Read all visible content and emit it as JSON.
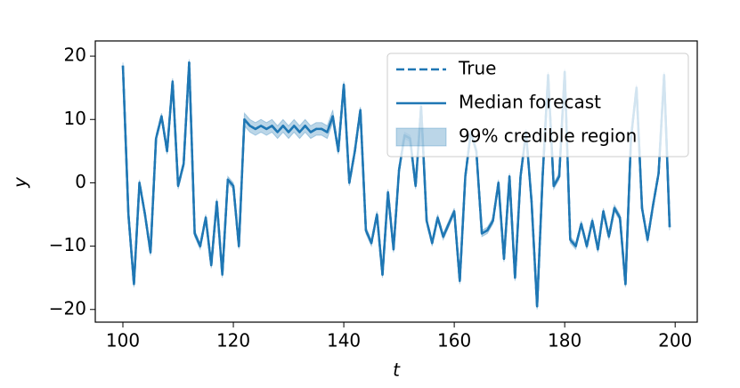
{
  "chart_data": {
    "type": "line",
    "xlabel": "t",
    "ylabel": "y",
    "x": [
      100,
      101,
      102,
      103,
      104,
      105,
      106,
      107,
      108,
      109,
      110,
      111,
      112,
      113,
      114,
      115,
      116,
      117,
      118,
      119,
      120,
      121,
      122,
      123,
      124,
      125,
      126,
      127,
      128,
      129,
      130,
      131,
      132,
      133,
      134,
      135,
      136,
      137,
      138,
      139,
      140,
      141,
      142,
      143,
      144,
      145,
      146,
      147,
      148,
      149,
      150,
      151,
      152,
      153,
      154,
      155,
      156,
      157,
      158,
      159,
      160,
      161,
      162,
      163,
      164,
      165,
      166,
      167,
      168,
      169,
      170,
      171,
      172,
      173,
      174,
      175,
      176,
      177,
      178,
      179,
      180,
      181,
      182,
      183,
      184,
      185,
      186,
      187,
      188,
      189,
      190,
      191,
      192,
      193,
      194,
      195,
      196,
      197,
      198,
      199
    ],
    "series": [
      {
        "name": "True",
        "color": "#1f77b4",
        "style": "dashed",
        "values": [
          18.5,
          -5,
          -16,
          0,
          -5,
          -11,
          7,
          10.5,
          5,
          16,
          -0.5,
          3,
          19,
          -8,
          -10,
          -5.5,
          -13,
          -3,
          -14.5,
          0.5,
          -0.5,
          -10,
          10,
          9,
          8.5,
          9,
          8.5,
          9,
          8,
          9,
          8,
          9,
          8,
          9,
          8,
          8.5,
          8.5,
          8,
          10.5,
          5,
          15.5,
          0,
          5,
          11.5,
          -7.5,
          -9.5,
          -5,
          -14.5,
          -1.5,
          -10.5,
          2,
          7.5,
          7,
          -0.5,
          12,
          -6,
          -9.5,
          -5.5,
          -8.5,
          -6.5,
          -4.5,
          -15.5,
          1,
          8,
          5,
          -8,
          -7.5,
          -6,
          0,
          -12,
          1,
          -15,
          1,
          8,
          -3,
          -19.5,
          1,
          17,
          -0.5,
          1,
          17.5,
          -9,
          -10,
          -6.5,
          -10,
          -6,
          -10.5,
          -4.5,
          -8.5,
          -4,
          -5.5,
          -16,
          7,
          15,
          -4,
          -9,
          -3.5,
          1.5,
          17,
          -7
        ]
      },
      {
        "name": "Median forecast",
        "color": "#1f77b4",
        "style": "solid",
        "values": [
          18.5,
          -5,
          -16,
          0,
          -5,
          -11,
          7,
          10.5,
          5,
          16,
          -0.5,
          3,
          19,
          -8,
          -10,
          -5.5,
          -13,
          -3,
          -14.5,
          0.5,
          -0.5,
          -10,
          10,
          9,
          8.5,
          9,
          8.5,
          9,
          8,
          9,
          8,
          9,
          8,
          9,
          8,
          8.5,
          8.5,
          8,
          10.5,
          5,
          15.5,
          0,
          5,
          11.5,
          -7.5,
          -9.5,
          -5,
          -14.5,
          -1.5,
          -10.5,
          2,
          7.5,
          7,
          -0.5,
          12,
          -6,
          -9.5,
          -5.5,
          -8.5,
          -6.5,
          -4.5,
          -15.5,
          1,
          8,
          5,
          -8,
          -7.5,
          -6,
          0,
          -12,
          1,
          -15,
          1,
          8,
          -3,
          -19.5,
          1,
          17,
          -0.5,
          1,
          17.5,
          -9,
          -10,
          -6.5,
          -10,
          -6,
          -10.5,
          -4.5,
          -8.5,
          -4,
          -5.5,
          -16,
          7,
          15,
          -4,
          -9,
          -3.5,
          1.5,
          17,
          -7
        ]
      }
    ],
    "band": {
      "name": "99% credible region",
      "color": "#1f77b4",
      "opacity": 0.3,
      "lower": [
        18,
        -5.5,
        -16.5,
        -0.5,
        -5.5,
        -11.5,
        6.5,
        10,
        4.5,
        15.5,
        -1,
        2.5,
        18.5,
        -8.5,
        -10.5,
        -6,
        -13.5,
        -3.5,
        -15,
        0,
        -1,
        -10.5,
        9,
        8,
        7.5,
        8,
        7.5,
        8,
        7,
        8,
        7,
        8,
        7,
        8,
        7,
        7.5,
        7.5,
        7,
        9.5,
        4.5,
        15,
        -0.5,
        4.5,
        11,
        -8,
        -10,
        -5.5,
        -15,
        -2,
        -11,
        1.5,
        7,
        6.5,
        -1,
        11.5,
        -6.5,
        -10,
        -6,
        -9,
        -7,
        -5,
        -16,
        0.5,
        7.5,
        4.5,
        -8.5,
        -8,
        -6.5,
        -0.5,
        -12.5,
        0.5,
        -15.5,
        0.5,
        7.5,
        -3.5,
        -20,
        0.5,
        16.5,
        -1,
        0.5,
        17,
        -9.5,
        -10.5,
        -7,
        -10.5,
        -6.5,
        -11,
        -5,
        -9,
        -4.5,
        -6,
        -16.5,
        6.5,
        14.5,
        -4.5,
        -9.5,
        -4,
        1,
        16.5,
        -7.5
      ],
      "upper": [
        19,
        -4.5,
        -15.5,
        0.5,
        -4.5,
        -10.5,
        7.5,
        11,
        5.5,
        16.5,
        0,
        3.5,
        19.5,
        -7.5,
        -9.5,
        -5,
        -12.5,
        -2.5,
        -14,
        1,
        0,
        -9.5,
        11,
        10,
        9.5,
        10,
        9.5,
        10,
        9,
        10,
        9,
        10,
        9,
        10,
        9,
        9.5,
        9.5,
        9,
        11.5,
        5.5,
        16,
        0.5,
        5.5,
        12,
        -7,
        -9,
        -4.5,
        -14,
        -1,
        -10,
        2.5,
        8,
        7.5,
        0,
        12.5,
        -5.5,
        -9,
        -5,
        -8,
        -6,
        -4,
        -15,
        1.5,
        8.5,
        5.5,
        -7.5,
        -7,
        -5.5,
        0.5,
        -11.5,
        1.5,
        -14.5,
        1.5,
        8.5,
        -2.5,
        -19,
        1.5,
        17.5,
        0,
        1.5,
        18,
        -8.5,
        -9.5,
        -6,
        -9.5,
        -5.5,
        -10,
        -4,
        -8,
        -3.5,
        -5,
        -15.5,
        7.5,
        15.5,
        -3.5,
        -8.5,
        -3,
        2,
        17.5,
        -6.5
      ]
    },
    "xlim": [
      95,
      204
    ],
    "ylim": [
      -22,
      22.4
    ],
    "xticks": [
      100,
      120,
      140,
      160,
      180,
      200
    ],
    "yticks": [
      {
        "value": -20,
        "label": "−20"
      },
      {
        "value": -10,
        "label": "−10"
      },
      0,
      10,
      20
    ],
    "legend": "upper right"
  }
}
